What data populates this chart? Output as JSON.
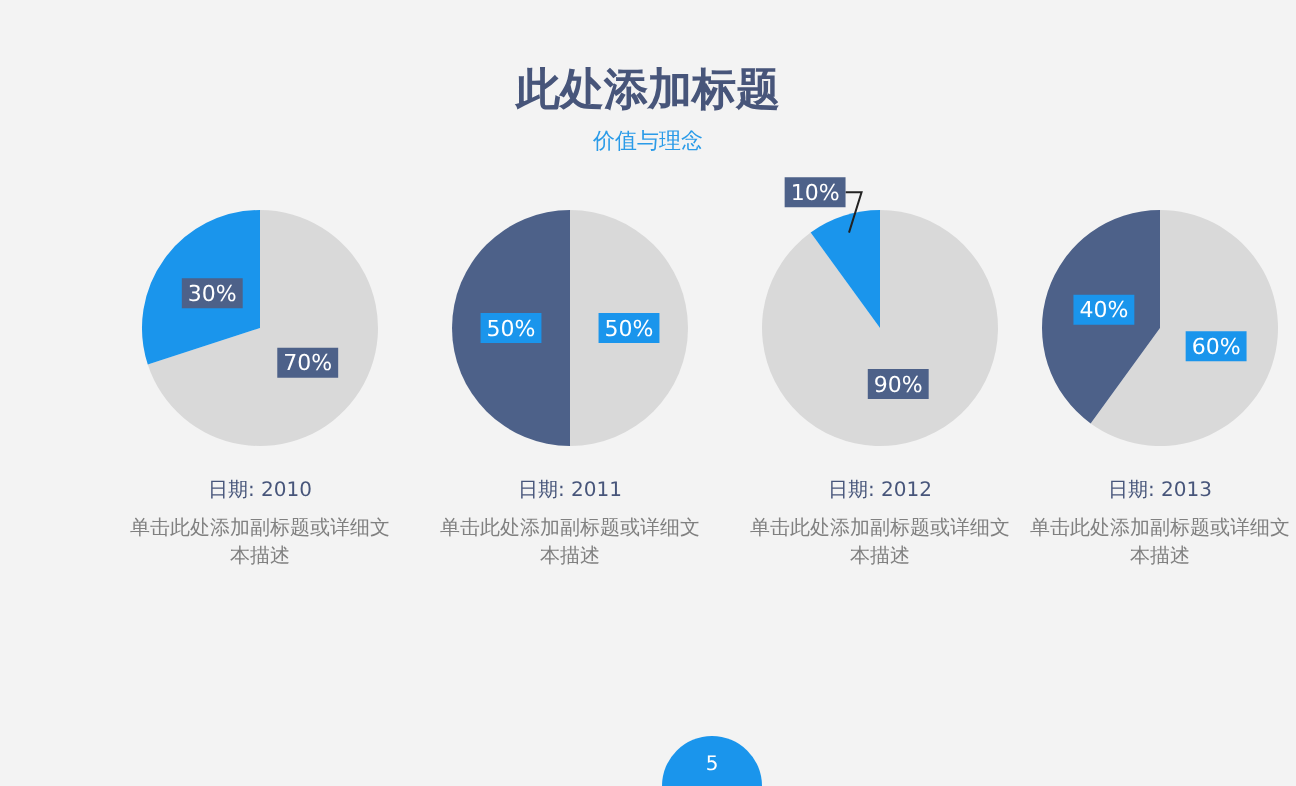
{
  "chart_data": [
    {
      "type": "other",
      "title": "此处添加标题",
      "subtitle": "价值与理念",
      "annotations": [
        "5"
      ]
    },
    {
      "type": "pie",
      "title": "日期: 2010",
      "subtitle": "单击此处添加副标题或详细文本描述",
      "categories": [
        null,
        null
      ],
      "values": [
        70,
        30
      ],
      "colors": [
        "#d9d9d9",
        "#1a95ec"
      ],
      "value_labels": [
        "70%",
        "30%"
      ]
    },
    {
      "type": "pie",
      "title": "日期: 2011",
      "subtitle": "单击此处添加副标题或详细文本描述",
      "categories": [
        null,
        null
      ],
      "values": [
        50,
        50
      ],
      "colors": [
        "#d9d9d9",
        "#4d6189"
      ],
      "value_labels": [
        "50%",
        "50%"
      ]
    },
    {
      "type": "pie",
      "title": "日期: 2012",
      "subtitle": "单击此处添加副标题或详细文本描述",
      "categories": [
        null,
        null
      ],
      "values": [
        90,
        10
      ],
      "colors": [
        "#d9d9d9",
        "#1a95ec"
      ],
      "value_labels": [
        "90%",
        "10%"
      ]
    },
    {
      "type": "pie",
      "title": "日期: 2013",
      "subtitle": "单击此处添加副标题或详细文本描述",
      "categories": [
        null,
        null
      ],
      "values": [
        60,
        40
      ],
      "colors": [
        "#d9d9d9",
        "#4d6189"
      ],
      "value_labels": [
        "60%",
        "40%"
      ]
    }
  ]
}
